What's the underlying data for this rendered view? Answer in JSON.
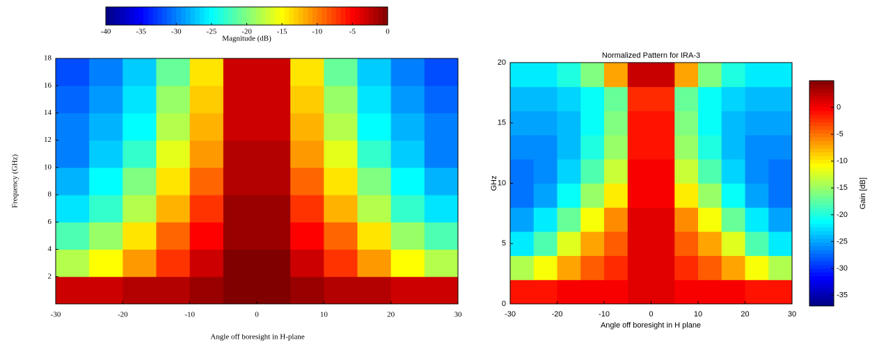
{
  "chart_data": [
    {
      "type": "heatmap",
      "xlabel": "Angle off boresight in H-plane",
      "ylabel": "Frequency (GHz)",
      "x": [
        -27.5,
        -22.5,
        -17.5,
        -12.5,
        -7.5,
        -2.5,
        2.5,
        7.5,
        12.5,
        17.5,
        22.5,
        27.5
      ],
      "y": [
        1,
        3,
        5,
        7,
        9,
        11,
        13,
        15,
        17
      ],
      "z": [
        [
          -3,
          -3,
          -2,
          -2,
          -1,
          0,
          0,
          -1,
          -2,
          -2,
          -3,
          -3
        ],
        [
          -18,
          -15,
          -11,
          -7,
          -3,
          0,
          0,
          -3,
          -7,
          -11,
          -15,
          -18
        ],
        [
          -22,
          -19,
          -14,
          -9,
          -5,
          -1,
          -1,
          -5,
          -9,
          -14,
          -19,
          -22
        ],
        [
          -26,
          -23,
          -18,
          -12,
          -7,
          -1,
          -1,
          -7,
          -12,
          -18,
          -23,
          -26
        ],
        [
          -28,
          -25,
          -20,
          -14,
          -9,
          -2,
          -2,
          -9,
          -14,
          -20,
          -25,
          -28
        ],
        [
          -30,
          -27,
          -23,
          -16,
          -11,
          -2,
          -2,
          -11,
          -16,
          -23,
          -27,
          -30
        ],
        [
          -30,
          -28,
          -25,
          -18,
          -12,
          -3,
          -3,
          -12,
          -18,
          -25,
          -28,
          -30
        ],
        [
          -31,
          -29,
          -26,
          -19,
          -13,
          -3,
          -3,
          -13,
          -19,
          -26,
          -29,
          -31
        ],
        [
          -32,
          -30,
          -27,
          -21,
          -14,
          -3,
          -3,
          -14,
          -21,
          -27,
          -30,
          -32
        ]
      ],
      "xlim": [
        -30,
        30
      ],
      "ylim": [
        0,
        18
      ],
      "xticks": [
        -30,
        -20,
        -10,
        0,
        10,
        20,
        30
      ],
      "yticks": [
        2,
        4,
        6,
        8,
        10,
        12,
        14,
        16,
        18
      ],
      "colorbar": {
        "label": "Magnitude (dB)",
        "lim": [
          -40,
          0
        ],
        "ticks": [
          -40,
          -35,
          -30,
          -25,
          -20,
          -15,
          -10,
          -5,
          0
        ]
      }
    },
    {
      "type": "heatmap",
      "title": "Normalized Pattern for IRA-3",
      "xlabel": "Angle off boresight in H plane",
      "ylabel": "GHz",
      "x": [
        -27.5,
        -22.5,
        -17.5,
        -12.5,
        -7.5,
        -2.5,
        2.5,
        7.5,
        12.5,
        17.5,
        22.5,
        27.5
      ],
      "y": [
        1,
        3,
        5,
        7,
        9,
        11,
        13,
        15,
        17,
        19
      ],
      "z": [
        [
          -1,
          -1,
          0,
          0,
          0,
          1,
          1,
          0,
          0,
          0,
          -1,
          -1
        ],
        [
          -14,
          -11,
          -7,
          -4,
          -2,
          1,
          1,
          -2,
          -4,
          -7,
          -11,
          -14
        ],
        [
          -22,
          -18,
          -12,
          -7,
          -4,
          1,
          1,
          -4,
          -7,
          -12,
          -18,
          -22
        ],
        [
          -25,
          -22,
          -17,
          -11,
          -6,
          1,
          1,
          -6,
          -11,
          -17,
          -22,
          -25
        ],
        [
          -27,
          -25,
          -21,
          -15,
          -10,
          0,
          0,
          -10,
          -15,
          -21,
          -25,
          -27
        ],
        [
          -27,
          -26,
          -23,
          -18,
          -13,
          0,
          0,
          -13,
          -18,
          -23,
          -26,
          -27
        ],
        [
          -26,
          -26,
          -24,
          -20,
          -15,
          -1,
          -1,
          -15,
          -20,
          -24,
          -26,
          -26
        ],
        [
          -25,
          -25,
          -24,
          -21,
          -16,
          -1,
          -1,
          -16,
          -21,
          -24,
          -25,
          -25
        ],
        [
          -24,
          -24,
          -23,
          -21,
          -17,
          -2,
          -2,
          -17,
          -21,
          -23,
          -24,
          -24
        ],
        [
          -22,
          -22,
          -20,
          -16,
          -7,
          2,
          2,
          -7,
          -16,
          -20,
          -22,
          -22
        ]
      ],
      "xlim": [
        -30,
        30
      ],
      "ylim": [
        0,
        20
      ],
      "xticks": [
        -30,
        -20,
        -10,
        0,
        10,
        20,
        30
      ],
      "yticks": [
        0,
        5,
        10,
        15,
        20
      ],
      "colorbar": {
        "label": "Gain [dB]",
        "lim": [
          -37,
          5
        ],
        "ticks": [
          0,
          -5,
          -10,
          -15,
          -20,
          -25,
          -30,
          -35
        ]
      }
    }
  ]
}
